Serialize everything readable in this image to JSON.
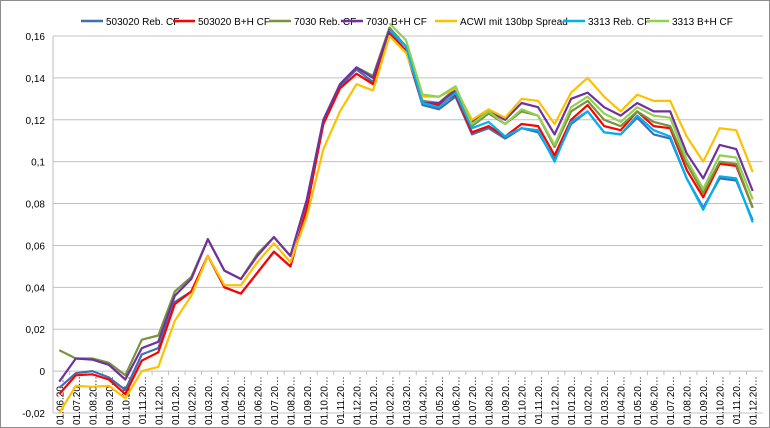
{
  "chart_data": {
    "type": "line",
    "title": "",
    "xlabel": "",
    "ylabel": "",
    "ylim": [
      -0.02,
      0.16
    ],
    "yticks": [
      "-0,02",
      "0",
      "0,02",
      "0,04",
      "0,06",
      "0,08",
      "0,1",
      "0,12",
      "0,14",
      "0,16"
    ],
    "ytick_values": [
      -0.02,
      0,
      0.02,
      0.04,
      0.06,
      0.08,
      0.1,
      0.12,
      0.14,
      0.16
    ],
    "grid": true,
    "legend": "top",
    "categories": [
      "01.06.20…",
      "01.07.20…",
      "01.08.20…",
      "01.09.20…",
      "01.10.20…",
      "01.11.20…",
      "01.12.20…",
      "01.01.20…",
      "01.02.20…",
      "01.03.20…",
      "01.04.20…",
      "01.05.20…",
      "01.06.20…",
      "01.07.20…",
      "01.08.20…",
      "01.09.20…",
      "01.10.20…",
      "01.11.20…",
      "01.12.20…",
      "01.01.20…",
      "01.02.20…",
      "01.03.20…",
      "01.04.20…",
      "01.05.20…",
      "01.06.20…",
      "01.07.20…",
      "01.08.20…",
      "01.09.20…",
      "01.10.20…",
      "01.11.20…",
      "01.12.20…",
      "01.01.20…",
      "01.02.20…",
      "01.03.20…",
      "01.04.20…",
      "01.05.20…",
      "01.06.20…",
      "01.07.20…",
      "01.08.20…",
      "01.09.20…",
      "01.10.20…",
      "01.11.20…",
      "01.12.20…"
    ],
    "series": [
      {
        "name": "503020 Reb. CF",
        "color": "#3F6FAF",
        "values": [
          -0.008,
          -0.001,
          0,
          -0.003,
          -0.009,
          0.008,
          0.011,
          0.033,
          0.038,
          0.055,
          0.04,
          0.037,
          0.047,
          0.057,
          0.05,
          0.078,
          0.119,
          0.136,
          0.144,
          0.138,
          0.162,
          0.153,
          0.127,
          0.125,
          0.131,
          0.113,
          0.116,
          0.111,
          0.116,
          0.114,
          0.101,
          0.118,
          0.124,
          0.114,
          0.113,
          0.121,
          0.113,
          0.111,
          0.092,
          0.078,
          0.092,
          0.091,
          0.072
        ]
      },
      {
        "name": "503020 B+H CF",
        "color": "#FF0000",
        "values": [
          -0.011,
          -0.002,
          -0.0015,
          -0.004,
          -0.011,
          0.005,
          0.009,
          0.032,
          0.038,
          0.055,
          0.04,
          0.037,
          0.047,
          0.057,
          0.05,
          0.078,
          0.118,
          0.135,
          0.142,
          0.137,
          0.161,
          0.153,
          0.128,
          0.127,
          0.132,
          0.114,
          0.117,
          0.112,
          0.118,
          0.117,
          0.103,
          0.12,
          0.127,
          0.117,
          0.115,
          0.124,
          0.117,
          0.116,
          0.096,
          0.083,
          0.099,
          0.098,
          0.078
        ]
      },
      {
        "name": "7030 Reb. CF",
        "color": "#77933C",
        "values": [
          0.01,
          0.006,
          0.006,
          0.004,
          -0.002,
          0.015,
          0.017,
          0.038,
          0.045,
          0.063,
          0.048,
          0.044,
          0.056,
          0.064,
          0.055,
          0.082,
          0.12,
          0.137,
          0.145,
          0.141,
          0.164,
          0.155,
          0.129,
          0.128,
          0.135,
          0.117,
          0.123,
          0.118,
          0.124,
          0.122,
          0.107,
          0.124,
          0.129,
          0.12,
          0.117,
          0.124,
          0.119,
          0.117,
          0.099,
          0.085,
          0.1,
          0.099,
          0.078
        ]
      },
      {
        "name": "7030 B+H CF",
        "color": "#7030A0",
        "values": [
          -0.005,
          0.006,
          0.0055,
          0.003,
          -0.004,
          0.011,
          0.014,
          0.036,
          0.044,
          0.063,
          0.048,
          0.044,
          0.055,
          0.064,
          0.055,
          0.082,
          0.12,
          0.137,
          0.145,
          0.14,
          0.163,
          0.155,
          0.128,
          0.128,
          0.134,
          0.119,
          0.124,
          0.12,
          0.128,
          0.126,
          0.113,
          0.13,
          0.133,
          0.126,
          0.122,
          0.128,
          0.124,
          0.124,
          0.104,
          0.092,
          0.108,
          0.106,
          0.086
        ]
      },
      {
        "name": "ACWI mit 130bp Spread",
        "color": "#FFC000",
        "values": [
          -0.02,
          -0.007,
          -0.0075,
          -0.007,
          -0.013,
          0,
          0.002,
          0.024,
          0.036,
          0.055,
          0.041,
          0.041,
          0.052,
          0.061,
          0.052,
          0.074,
          0.106,
          0.124,
          0.137,
          0.134,
          0.16,
          0.152,
          0.131,
          0.131,
          0.135,
          0.12,
          0.125,
          0.121,
          0.13,
          0.129,
          0.118,
          0.133,
          0.14,
          0.131,
          0.124,
          0.132,
          0.129,
          0.129,
          0.112,
          0.1,
          0.116,
          0.115,
          0.095
        ]
      },
      {
        "name": "3313 Reb. CF",
        "color": "#00B0F0",
        "values": [
          null,
          null,
          null,
          null,
          null,
          null,
          null,
          null,
          null,
          null,
          null,
          null,
          null,
          null,
          null,
          null,
          null,
          null,
          null,
          null,
          0.163,
          0.155,
          0.128,
          0.126,
          0.133,
          0.116,
          0.119,
          0.112,
          0.116,
          0.115,
          0.1,
          0.119,
          0.124,
          0.114,
          0.113,
          0.122,
          0.115,
          0.112,
          0.092,
          0.077,
          0.093,
          0.092,
          0.071
        ]
      },
      {
        "name": "3313 B+H CF",
        "color": "#92D050",
        "values": [
          null,
          null,
          null,
          null,
          null,
          null,
          null,
          null,
          null,
          null,
          null,
          null,
          null,
          null,
          null,
          null,
          null,
          null,
          null,
          null,
          0.166,
          0.158,
          0.132,
          0.131,
          0.136,
          0.118,
          0.124,
          0.118,
          0.125,
          0.122,
          0.108,
          0.126,
          0.131,
          0.123,
          0.119,
          0.126,
          0.122,
          0.121,
          0.101,
          0.087,
          0.103,
          0.102,
          0.082
        ]
      }
    ]
  }
}
